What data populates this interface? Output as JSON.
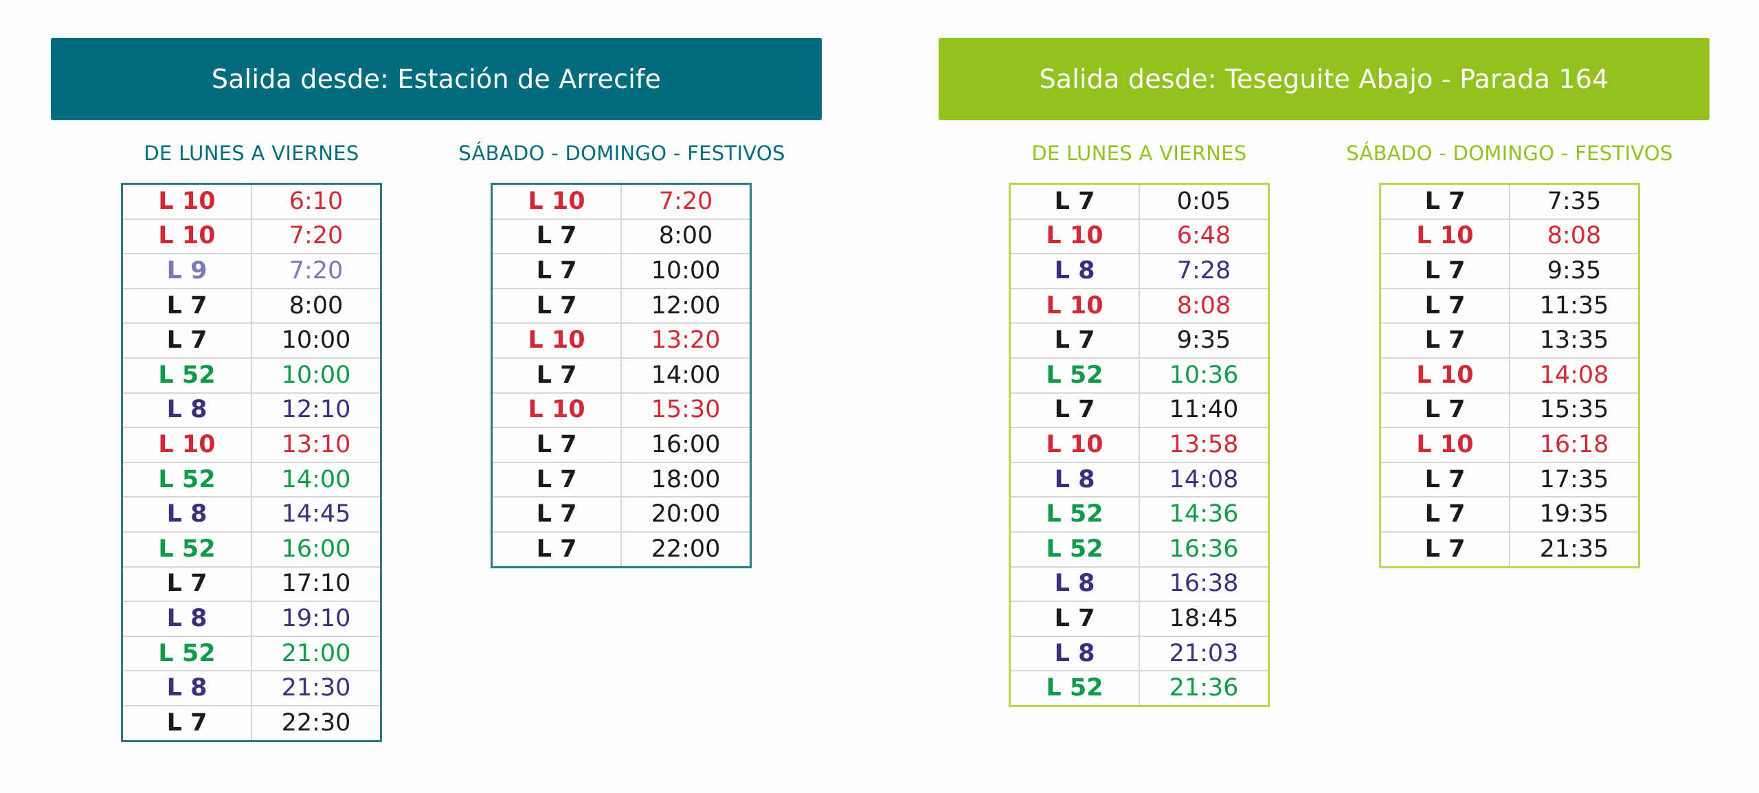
{
  "line_colors": {
    "L 7": "#1a1a1a",
    "L 8": "#3c2f7c",
    "L 9": "#7a78b8",
    "L 10": "#d12a36",
    "L 52": "#0f9a4a"
  },
  "sections": [
    {
      "title": "Salida desde: Estación de Arrecife",
      "accent": "#016c7c",
      "weekday": {
        "heading": "DE LUNES A VIERNES",
        "rows": [
          {
            "line": "L 10",
            "time": "6:10"
          },
          {
            "line": "L 10",
            "time": "7:20"
          },
          {
            "line": "L 9",
            "time": "7:20"
          },
          {
            "line": "L 7",
            "time": "8:00"
          },
          {
            "line": "L 7",
            "time": "10:00"
          },
          {
            "line": "L 52",
            "time": "10:00"
          },
          {
            "line": "L 8",
            "time": "12:10"
          },
          {
            "line": "L 10",
            "time": "13:10"
          },
          {
            "line": "L 52",
            "time": "14:00"
          },
          {
            "line": "L 8",
            "time": "14:45"
          },
          {
            "line": "L 52",
            "time": "16:00"
          },
          {
            "line": "L 7",
            "time": "17:10"
          },
          {
            "line": "L 8",
            "time": "19:10"
          },
          {
            "line": "L 52",
            "time": "21:00"
          },
          {
            "line": "L 8",
            "time": "21:30"
          },
          {
            "line": "L 7",
            "time": "22:30"
          }
        ]
      },
      "weekend": {
        "heading": "SÁBADO - DOMINGO - FESTIVOS",
        "rows": [
          {
            "line": "L 10",
            "time": "7:20"
          },
          {
            "line": "L 7",
            "time": "8:00"
          },
          {
            "line": "L 7",
            "time": "10:00"
          },
          {
            "line": "L 7",
            "time": "12:00"
          },
          {
            "line": "L 10",
            "time": "13:20"
          },
          {
            "line": "L 7",
            "time": "14:00"
          },
          {
            "line": "L 10",
            "time": "15:30"
          },
          {
            "line": "L 7",
            "time": "16:00"
          },
          {
            "line": "L 7",
            "time": "18:00"
          },
          {
            "line": "L 7",
            "time": "20:00"
          },
          {
            "line": "L 7",
            "time": "22:00"
          }
        ]
      }
    },
    {
      "title": "Salida desde: Teseguite Abajo - Parada 164",
      "accent": "#93c11f",
      "weekday": {
        "heading": "DE LUNES A VIERNES",
        "rows": [
          {
            "line": "L 7",
            "time": "0:05"
          },
          {
            "line": "L 10",
            "time": "6:48"
          },
          {
            "line": "L 8",
            "time": "7:28"
          },
          {
            "line": "L 10",
            "time": "8:08"
          },
          {
            "line": "L 7",
            "time": "9:35"
          },
          {
            "line": "L 52",
            "time": "10:36"
          },
          {
            "line": "L 7",
            "time": "11:40"
          },
          {
            "line": "L 10",
            "time": "13:58"
          },
          {
            "line": "L 8",
            "time": "14:08"
          },
          {
            "line": "L 52",
            "time": "14:36"
          },
          {
            "line": "L 52",
            "time": "16:36"
          },
          {
            "line": "L 8",
            "time": "16:38"
          },
          {
            "line": "L 7",
            "time": "18:45"
          },
          {
            "line": "L 8",
            "time": "21:03"
          },
          {
            "line": "L 52",
            "time": "21:36"
          }
        ]
      },
      "weekend": {
        "heading": "SÁBADO - DOMINGO - FESTIVOS",
        "rows": [
          {
            "line": "L 7",
            "time": "7:35"
          },
          {
            "line": "L 10",
            "time": "8:08"
          },
          {
            "line": "L 7",
            "time": "9:35"
          },
          {
            "line": "L 7",
            "time": "11:35"
          },
          {
            "line": "L 7",
            "time": "13:35"
          },
          {
            "line": "L 10",
            "time": "14:08"
          },
          {
            "line": "L 7",
            "time": "15:35"
          },
          {
            "line": "L 10",
            "time": "16:18"
          },
          {
            "line": "L 7",
            "time": "17:35"
          },
          {
            "line": "L 7",
            "time": "19:35"
          },
          {
            "line": "L 7",
            "time": "21:35"
          }
        ]
      }
    }
  ]
}
